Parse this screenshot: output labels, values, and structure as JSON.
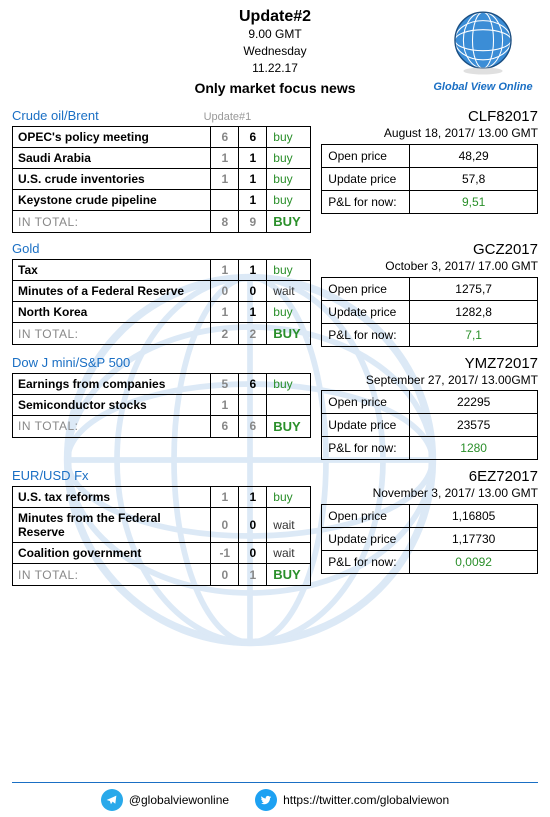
{
  "header": {
    "title": "Update#2",
    "time": "9.00 GMT",
    "day": "Wednesday",
    "date": "11.22.17",
    "focus": "Only market focus news"
  },
  "logo": {
    "label": "Global View Online"
  },
  "update_note": "Update#1",
  "sections": [
    {
      "title": "Crude oil/Brent",
      "rows": [
        {
          "name": "OPEC's policy meeting",
          "v1": "6",
          "v2": "6",
          "action": "buy",
          "cls": "buy"
        },
        {
          "name": "Saudi Arabia",
          "v1": "1",
          "v2": "1",
          "action": "buy",
          "cls": "buy"
        },
        {
          "name": "U.S. crude inventories",
          "v1": "1",
          "v2": "1",
          "action": "buy",
          "cls": "buy"
        },
        {
          "name": "Keystone crude pipeline",
          "v1": "",
          "v2": "1",
          "action": "buy",
          "cls": "buy"
        }
      ],
      "total": {
        "label": "IN TOTAL:",
        "v1": "8",
        "v2": "9",
        "action": "BUY",
        "cls": "buy"
      },
      "quote": {
        "symbol": "CLF82017",
        "dateline": "August 18, 2017/ 13.00 GMT",
        "open_lbl": "Open price",
        "open": "48,29",
        "upd_lbl": "Update price",
        "upd": "57,8",
        "pnl_lbl": "P&L for now:",
        "pnl": "9,51"
      }
    },
    {
      "title": "Gold",
      "rows": [
        {
          "name": "Tax",
          "v1": "1",
          "v2": "1",
          "action": "buy",
          "cls": "buy"
        },
        {
          "name": "Minutes of a Federal Reserve",
          "v1": "0",
          "v2": "0",
          "action": "wait",
          "cls": "wait"
        },
        {
          "name": "North Korea",
          "v1": "1",
          "v2": "1",
          "action": "buy",
          "cls": "buy"
        }
      ],
      "total": {
        "label": "IN TOTAL:",
        "v1": "2",
        "v2": "2",
        "action": "BUY",
        "cls": "buy"
      },
      "quote": {
        "symbol": "GCZ2017",
        "dateline": "October 3, 2017/ 17.00 GMT",
        "open_lbl": "Open price",
        "open": "1275,7",
        "upd_lbl": "Update price",
        "upd": "1282,8",
        "pnl_lbl": "P&L for now:",
        "pnl": "7,1"
      }
    },
    {
      "title": "Dow J mini/S&P 500",
      "rows": [
        {
          "name": "Earnings from companies",
          "v1": "5",
          "v2": "6",
          "action": "buy",
          "cls": "buy"
        },
        {
          "name": "Semiconductor stocks",
          "v1": "1",
          "v2": "",
          "action": "",
          "cls": "wait"
        }
      ],
      "total": {
        "label": "IN TOTAL:",
        "v1": "6",
        "v2": "6",
        "action": "BUY",
        "cls": "buy"
      },
      "quote": {
        "symbol": "YMZ72017",
        "dateline": "September 27, 2017/ 13.00GMT",
        "open_lbl": "Open price",
        "open": "22295",
        "upd_lbl": "Update price",
        "upd": "23575",
        "pnl_lbl": "P&L for now:",
        "pnl": "1280"
      }
    },
    {
      "title": "EUR/USD Fx",
      "rows": [
        {
          "name": "U.S. tax reforms",
          "v1": "1",
          "v2": "1",
          "action": "buy",
          "cls": "buy"
        },
        {
          "name": "Minutes from the Federal Reserve",
          "v1": "0",
          "v2": "0",
          "action": "wait",
          "cls": "wait"
        },
        {
          "name": "Coalition government",
          "v1": "-1",
          "v2": "0",
          "action": "wait",
          "cls": "wait"
        }
      ],
      "total": {
        "label": "IN TOTAL:",
        "v1": "0",
        "v2": "1",
        "action": "BUY",
        "cls": "buy"
      },
      "quote": {
        "symbol": "6EZ72017",
        "dateline": "November 3, 2017/ 13.00 GMT",
        "open_lbl": "Open price",
        "open": "1,16805",
        "upd_lbl": "Update price",
        "upd": "1,17730",
        "pnl_lbl": "P&L for now:",
        "pnl": "0,0092"
      }
    }
  ],
  "footer": {
    "telegram": "@globalviewonline",
    "twitter": "https://twitter.com/globalviewon"
  }
}
